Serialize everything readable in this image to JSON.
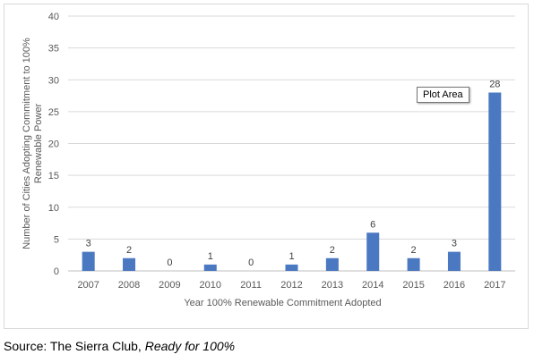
{
  "chart_data": {
    "type": "bar",
    "categories": [
      "2007",
      "2008",
      "2009",
      "2010",
      "2011",
      "2012",
      "2013",
      "2014",
      "2015",
      "2016",
      "2017"
    ],
    "values": [
      3,
      2,
      0,
      1,
      0,
      1,
      2,
      6,
      2,
      3,
      28
    ],
    "data_labels": [
      "3",
      "2",
      "0",
      "1",
      "0",
      "1",
      "2",
      "6",
      "2",
      "3",
      "28"
    ],
    "ylim": [
      0,
      40
    ],
    "yticks": [
      0,
      5,
      10,
      15,
      20,
      25,
      30,
      35,
      40
    ],
    "ylabel_lines": [
      "Number of Cities Adopting Commitment to 100%",
      "Renewable Power"
    ],
    "xlabel": "Year 100% Renewable Commitment Adopted",
    "bar_color": "#4a78c1",
    "grid": true,
    "grid_color": "#d9d9d9",
    "legend": "none"
  },
  "tooltip": {
    "text": "Plot Area"
  },
  "source": {
    "prefix": "Source: The Sierra Club, ",
    "title": "Ready for 100%"
  }
}
